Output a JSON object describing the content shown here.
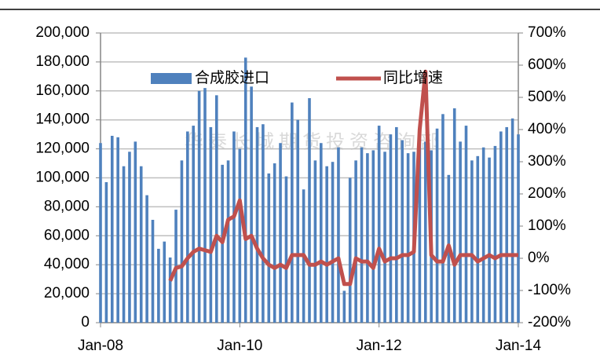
{
  "chart_data": {
    "type": "bar",
    "watermark": "华泰长城期货投资咨询部",
    "legend": "top",
    "grid": true,
    "categories": [
      "Jan-08",
      null,
      null,
      null,
      null,
      null,
      null,
      null,
      null,
      null,
      null,
      null,
      null,
      null,
      null,
      null,
      null,
      null,
      null,
      null,
      null,
      null,
      null,
      null,
      "Jan-10",
      null,
      null,
      null,
      null,
      null,
      null,
      null,
      null,
      null,
      null,
      null,
      null,
      null,
      null,
      null,
      null,
      null,
      null,
      null,
      null,
      null,
      null,
      null,
      "Jan-12",
      null,
      null,
      null,
      null,
      null,
      null,
      null,
      null,
      null,
      null,
      null,
      null,
      null,
      null,
      null,
      null,
      null,
      null,
      null,
      null,
      null,
      null,
      null,
      "Jan-14"
    ],
    "series": [
      {
        "name": "合成胶进口",
        "type": "bar",
        "color": "#4f81bd",
        "values": [
          124000,
          97000,
          129000,
          128000,
          108000,
          118000,
          125000,
          108000,
          88000,
          71000,
          51000,
          56000,
          45000,
          78000,
          112000,
          132000,
          136000,
          160000,
          162000,
          135000,
          157000,
          109000,
          112000,
          132000,
          120000,
          183000,
          163000,
          135000,
          137000,
          103000,
          110000,
          124000,
          101000,
          152000,
          140000,
          92000,
          155000,
          112000,
          124000,
          108000,
          111000,
          121000,
          22000,
          100000,
          112000,
          121000,
          117000,
          119000,
          136000,
          118000,
          130000,
          135000,
          126000,
          117000,
          118000,
          129000,
          125000,
          119000,
          134000,
          144000,
          102000,
          148000,
          125000,
          136000,
          112000,
          115000,
          121000,
          114000,
          122000,
          132000,
          135000,
          141000,
          130000
        ]
      },
      {
        "name": "同比增速",
        "type": "line",
        "axis": "y2",
        "color": "#c0504d",
        "values": [
          null,
          null,
          null,
          null,
          null,
          null,
          null,
          null,
          null,
          null,
          null,
          null,
          -70,
          -30,
          -25,
          0,
          20,
          30,
          25,
          20,
          70,
          50,
          120,
          130,
          180,
          60,
          70,
          30,
          0,
          -20,
          -30,
          -20,
          -30,
          10,
          10,
          10,
          -20,
          -20,
          -10,
          -20,
          -10,
          0,
          -80,
          -80,
          0,
          -10,
          -10,
          -30,
          30,
          -10,
          0,
          0,
          10,
          10,
          20,
          400,
          580,
          10,
          -10,
          -10,
          40,
          -20,
          10,
          10,
          10,
          -10,
          0,
          10,
          0,
          10,
          10,
          10,
          10
        ]
      }
    ],
    "ylim": [
      0,
      200000
    ],
    "yticks": [
      0,
      {
        "value": 20000,
        "label": "20,000"
      },
      {
        "value": 40000,
        "label": "40,000"
      },
      {
        "value": 60000,
        "label": "60,000"
      },
      {
        "value": 80000,
        "label": "80,000"
      },
      {
        "value": 100000,
        "label": "100,000"
      },
      {
        "value": 120000,
        "label": "120,000"
      },
      {
        "value": 140000,
        "label": "140,000"
      },
      {
        "value": 160000,
        "label": "160,000"
      },
      {
        "value": 180000,
        "label": "180,000"
      },
      {
        "value": 200000,
        "label": "200,000"
      }
    ],
    "y2lim": [
      -200,
      700
    ],
    "y2ticks": [
      {
        "value": -200,
        "label": "-200%"
      },
      {
        "value": -100,
        "label": "-100%"
      },
      {
        "value": 0,
        "label": "0%"
      },
      {
        "value": 100,
        "label": "100%"
      },
      {
        "value": 200,
        "label": "200%"
      },
      {
        "value": 300,
        "label": "300%"
      },
      {
        "value": 400,
        "label": "400%"
      },
      {
        "value": 500,
        "label": "500%"
      },
      {
        "value": 600,
        "label": "600%"
      },
      {
        "value": 700,
        "label": "700%"
      }
    ]
  }
}
